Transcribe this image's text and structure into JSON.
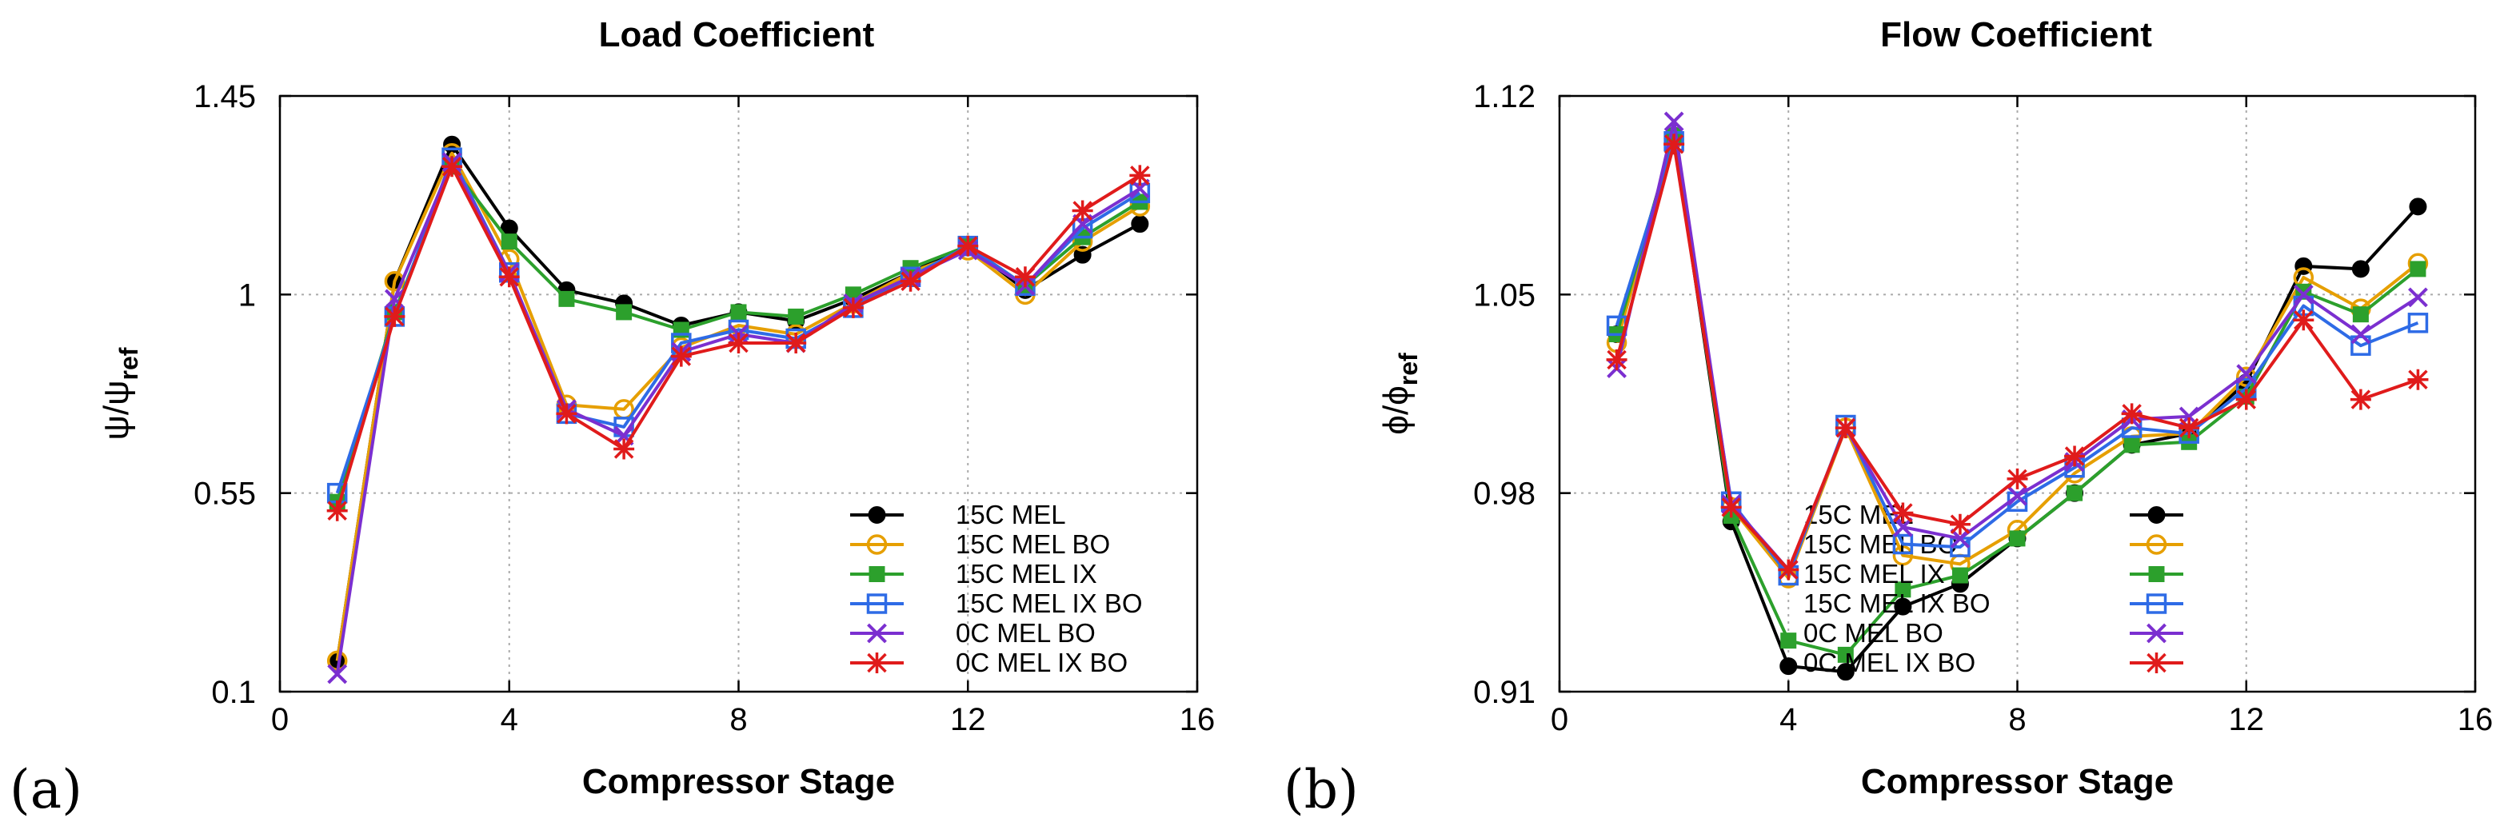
{
  "colors": {
    "15C MEL": "#000000",
    "15C MEL BO": "#E69F00",
    "15C MEL IX": "#2CA02C",
    "15C MEL IX BO": "#2E6BE6",
    "0C MEL BO": "#7B2FD0",
    "0C MEL IX BO": "#E01B1B"
  },
  "chart_data": [
    {
      "type": "line",
      "panel_label": "(a)",
      "title": "Load Coefficient",
      "xlabel": "Compressor Stage",
      "ylabel": {
        "sym": "ψ/ψ",
        "sub": "ref"
      },
      "xlim": [
        0,
        16
      ],
      "ylim": [
        0.1,
        1.45
      ],
      "xticks": [
        "0",
        "4",
        "8",
        "12",
        "16"
      ],
      "yticks": [
        "0.1",
        "0.55",
        "1",
        "1.45"
      ],
      "grid": true,
      "legend_position": "bottom-right",
      "x": [
        1,
        2,
        3,
        4,
        5,
        6,
        7,
        8,
        9,
        10,
        11,
        12,
        13,
        14,
        15
      ],
      "series": [
        {
          "name": "15C MEL",
          "marker": "filled-circle",
          "values": [
            0.17,
            1.03,
            1.34,
            1.15,
            1.01,
            0.98,
            0.93,
            0.96,
            0.94,
            0.99,
            1.05,
            1.11,
            1.01,
            1.09,
            1.16
          ]
        },
        {
          "name": "15C MEL BO",
          "marker": "open-circle",
          "values": [
            0.17,
            1.03,
            1.32,
            1.08,
            0.75,
            0.74,
            0.88,
            0.93,
            0.91,
            0.98,
            1.05,
            1.1,
            1.0,
            1.12,
            1.2
          ]
        },
        {
          "name": "15C MEL IX",
          "marker": "filled-square",
          "values": [
            0.53,
            0.96,
            1.29,
            1.12,
            0.99,
            0.96,
            0.92,
            0.96,
            0.95,
            1.0,
            1.06,
            1.11,
            1.02,
            1.13,
            1.21
          ]
        },
        {
          "name": "15C MEL IX BO",
          "marker": "open-square",
          "values": [
            0.55,
            0.95,
            1.31,
            1.05,
            0.73,
            0.7,
            0.89,
            0.92,
            0.9,
            0.97,
            1.04,
            1.11,
            1.02,
            1.15,
            1.23
          ]
        },
        {
          "name": "0C MEL BO",
          "marker": "x",
          "values": [
            0.14,
            0.99,
            1.3,
            1.05,
            0.74,
            0.68,
            0.87,
            0.91,
            0.89,
            0.98,
            1.04,
            1.1,
            1.02,
            1.16,
            1.24
          ]
        },
        {
          "name": "0C MEL IX BO",
          "marker": "star",
          "values": [
            0.51,
            0.95,
            1.29,
            1.04,
            0.73,
            0.65,
            0.86,
            0.89,
            0.89,
            0.97,
            1.03,
            1.11,
            1.04,
            1.19,
            1.27
          ]
        }
      ]
    },
    {
      "type": "line",
      "panel_label": "(b)",
      "title": "Flow Coefficient",
      "xlabel": "Compressor Stage",
      "ylabel": {
        "sym": "ϕ/ϕ",
        "sub": "ref"
      },
      "xlim": [
        0,
        16
      ],
      "ylim": [
        0.91,
        1.12
      ],
      "xticks": [
        "0",
        "4",
        "8",
        "12",
        "16"
      ],
      "yticks": [
        "0.91",
        "0.98",
        "1.05",
        "1.12"
      ],
      "grid": true,
      "legend_position": "bottom-right",
      "x": [
        1,
        2,
        3,
        4,
        5,
        6,
        7,
        8,
        9,
        10,
        11,
        12,
        13,
        14,
        15
      ],
      "series": [
        {
          "name": "15C MEL",
          "marker": "filled-circle",
          "values": [
            1.036,
            1.106,
            0.97,
            0.919,
            0.917,
            0.94,
            0.948,
            0.964,
            0.98,
            0.997,
            1.001,
            1.019,
            1.06,
            1.059,
            1.081
          ]
        },
        {
          "name": "15C MEL BO",
          "marker": "open-circle",
          "values": [
            1.033,
            1.105,
            0.975,
            0.95,
            1.003,
            0.958,
            0.955,
            0.967,
            0.987,
            1.0,
            1.001,
            1.021,
            1.056,
            1.045,
            1.061
          ]
        },
        {
          "name": "15C MEL IX",
          "marker": "filled-square",
          "values": [
            1.036,
            1.106,
            0.972,
            0.928,
            0.923,
            0.946,
            0.951,
            0.964,
            0.98,
            0.997,
            0.998,
            1.014,
            1.051,
            1.043,
            1.059
          ]
        },
        {
          "name": "15C MEL IX BO",
          "marker": "open-square",
          "values": [
            1.039,
            1.104,
            0.977,
            0.951,
            1.004,
            0.962,
            0.961,
            0.977,
            0.989,
            1.003,
            1.001,
            1.017,
            1.046,
            1.032,
            1.04
          ]
        },
        {
          "name": "0C MEL BO",
          "marker": "x",
          "values": [
            1.024,
            1.111,
            0.976,
            0.953,
            1.003,
            0.968,
            0.964,
            0.979,
            0.991,
            1.006,
            1.007,
            1.022,
            1.05,
            1.036,
            1.049
          ]
        },
        {
          "name": "0C MEL IX BO",
          "marker": "star",
          "values": [
            1.027,
            1.103,
            0.975,
            0.953,
            1.003,
            0.973,
            0.969,
            0.985,
            0.993,
            1.008,
            1.003,
            1.013,
            1.041,
            1.013,
            1.02
          ]
        }
      ]
    }
  ]
}
